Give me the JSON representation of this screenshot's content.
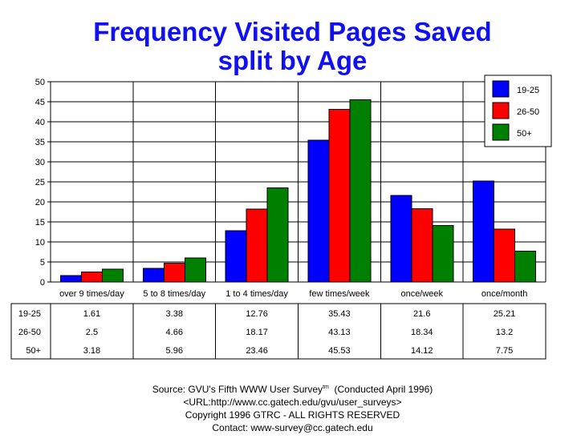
{
  "chart_data": {
    "type": "bar",
    "title": "Frequency Visited Pages Saved",
    "subtitle": "split by Age",
    "categories": [
      "over 9 times/day",
      "5 to 8 times/day",
      "1 to 4 times/day",
      "few times/week",
      "once/week",
      "once/month"
    ],
    "series": [
      {
        "name": "19-25",
        "color": "#0000ff",
        "values": [
          1.61,
          3.38,
          12.76,
          35.43,
          21.6,
          25.21
        ],
        "labels": [
          "1.61",
          "3.38",
          "12.76",
          "35.43",
          "21.6",
          "25.21"
        ]
      },
      {
        "name": "26-50",
        "color": "#ff0000",
        "values": [
          2.5,
          4.66,
          18.17,
          43.13,
          18.34,
          13.2
        ],
        "labels": [
          "2.5",
          "4.66",
          "18.17",
          "43.13",
          "18.34",
          "13.2"
        ]
      },
      {
        "name": "50+",
        "color": "#008000",
        "values": [
          3.18,
          5.96,
          23.46,
          45.53,
          14.12,
          7.75
        ],
        "labels": [
          "3.18",
          "5.96",
          "23.46",
          "45.53",
          "14.12",
          "7.75"
        ]
      }
    ],
    "ylim": [
      0,
      50
    ],
    "yticks": [
      0,
      5,
      10,
      15,
      20,
      25,
      30,
      35,
      40,
      45,
      50
    ],
    "grid": true,
    "legend": "top-right",
    "xlabel": "",
    "ylabel": ""
  },
  "footer": {
    "source": "Source: GVU's Fifth WWW User Survey",
    "tm": "tm",
    "conducted": "(Conducted April 1996)",
    "url": "<URL:http://www.cc.gatech.edu/gvu/user_surveys>",
    "copyright": "Copyright 1996 GTRC -  ALL RIGHTS RESERVED",
    "contact": "Contact: www-survey@cc.gatech.edu"
  }
}
